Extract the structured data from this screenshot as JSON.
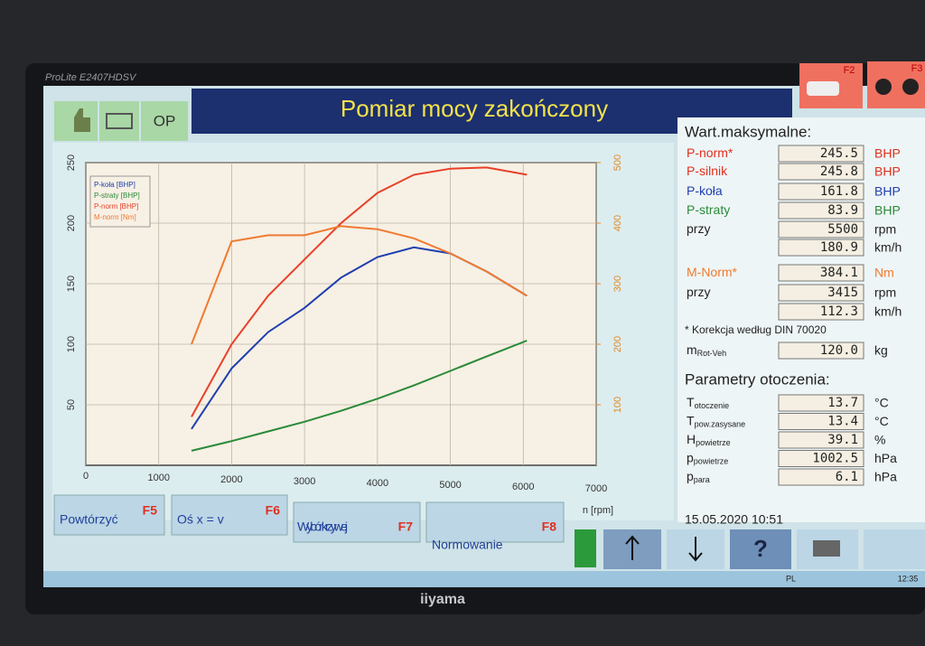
{
  "monitor": {
    "model": "ProLite E2407HDSV",
    "brand": "iiyama"
  },
  "header": {
    "title": "Pomiar mocy zakończony",
    "status": "OP",
    "keys": [
      "F2",
      "F3"
    ]
  },
  "chart_data": {
    "type": "line",
    "x": [
      1450,
      2000,
      2500,
      3000,
      3500,
      4000,
      4500,
      5000,
      5500,
      6050
    ],
    "xlim": [
      0,
      7000
    ],
    "xticks": [
      0,
      1000,
      2000,
      3000,
      4000,
      5000,
      6000,
      7000
    ],
    "xlabel": "n [rpm]",
    "ylim": [
      0,
      250
    ],
    "yticks": [
      50,
      100,
      150,
      200,
      250
    ],
    "y2lim": [
      0,
      500
    ],
    "y2ticks": [
      100,
      200,
      300,
      400,
      500
    ],
    "grid": true,
    "legend": "upper left",
    "series": [
      {
        "name": "P-koła [BHP]",
        "color": "#1f3fb0",
        "values": [
          30,
          80,
          110,
          130,
          155,
          172,
          180,
          175,
          160,
          140
        ]
      },
      {
        "name": "P-straty [BHP]",
        "color": "#2a8a3a",
        "values": [
          12,
          20,
          28,
          36,
          45,
          55,
          66,
          78,
          90,
          103
        ]
      },
      {
        "name": "P-norm [BHP]",
        "color": "#e8402a",
        "values": [
          40,
          100,
          140,
          170,
          200,
          225,
          240,
          245,
          246,
          240
        ]
      },
      {
        "name": "M-norm [Nm]",
        "color": "#f07a30",
        "axis": "y2",
        "values": [
          200,
          370,
          380,
          380,
          395,
          390,
          375,
          350,
          320,
          280
        ]
      }
    ]
  },
  "max_panel": {
    "title": "Wart.maksymalne:",
    "note": "* Korekcja według DIN 70020",
    "rows": [
      {
        "label": "P-norm*",
        "color": "#e0301e",
        "value": "245.5",
        "unit": "BHP"
      },
      {
        "label": "P-silnik",
        "color": "#e0301e",
        "value": "245.8",
        "unit": "BHP"
      },
      {
        "label": "P-koła",
        "color": "#1f3fb0",
        "value": "161.8",
        "unit": "BHP"
      },
      {
        "label": "P-straty",
        "color": "#2a8a3a",
        "value": "83.9",
        "unit": "BHP"
      },
      {
        "label": "przy",
        "color": "#222222",
        "value": "5500",
        "unit": "rpm"
      },
      {
        "color": "#222222",
        "value": "180.9",
        "unit": "km/h"
      },
      {
        "label": "M-Norm*",
        "color": "#f07a30",
        "value": "384.1",
        "unit": "Nm"
      },
      {
        "label": "przy",
        "color": "#222222",
        "value": "3415",
        "unit": "rpm"
      },
      {
        "color": "#222222",
        "value": "112.3",
        "unit": "km/h"
      },
      {
        "label": "m",
        "sub": "Rot-Veh",
        "color": "#222222",
        "value": "120.0",
        "unit": "kg"
      }
    ]
  },
  "env_panel": {
    "title": "Parametry otoczenia:",
    "rows": [
      {
        "label": "T",
        "sub": "otoczenie",
        "value": "13.7",
        "unit": "°C"
      },
      {
        "label": "T",
        "sub": "pow.zasysane",
        "value": "13.4",
        "unit": "°C"
      },
      {
        "label": "H",
        "sub": "powietrze",
        "value": "39.1",
        "unit": "%"
      },
      {
        "label": "p",
        "sub": "powietrze",
        "value": "1002.5",
        "unit": "hPa"
      },
      {
        "label": "p",
        "sub": "para",
        "value": "6.1",
        "unit": "hPa"
      }
    ]
  },
  "footer": {
    "datetime": "15.05.2020  10:51",
    "help": "?",
    "buttons": [
      {
        "label": "Powtórzyć",
        "key": "F5"
      },
      {
        "label": "Oś x = v",
        "key": "F6"
      },
      {
        "label": "Wybór krzywej",
        "key": "F7"
      },
      {
        "label": "Normowanie",
        "key": "F8"
      }
    ]
  },
  "taskbar": {
    "lang": "PL",
    "time": "12:35"
  }
}
